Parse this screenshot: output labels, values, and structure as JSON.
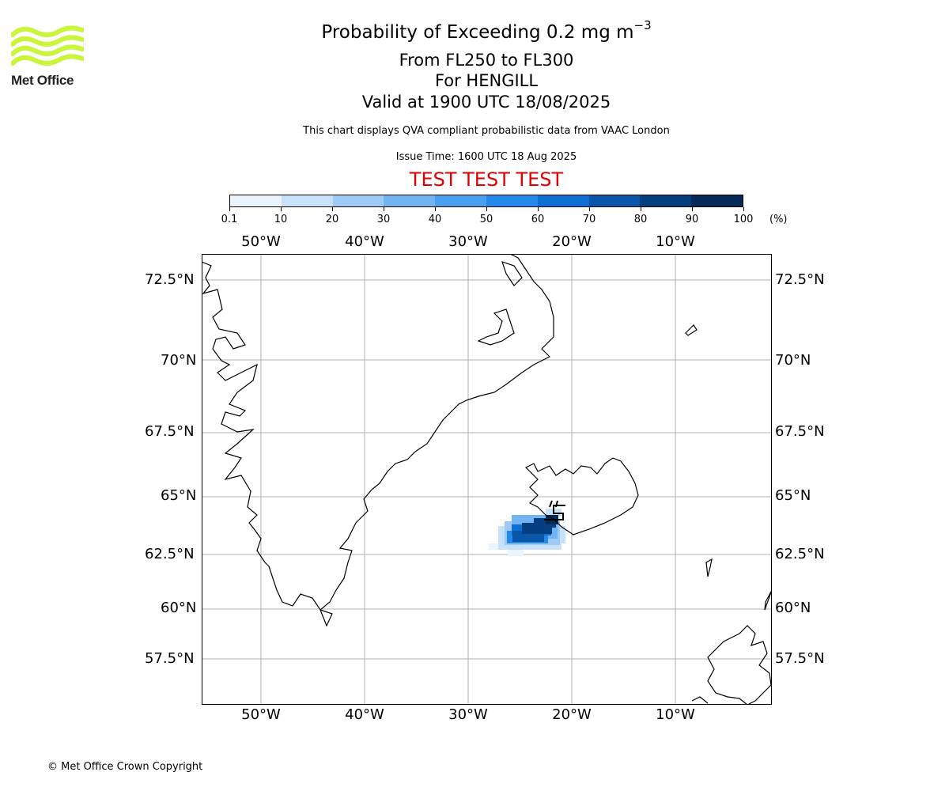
{
  "brand": {
    "name": "Met Office",
    "logo_color": "#c9f53a"
  },
  "header": {
    "title_main": "Probability of Exceeding 0.2 mg m",
    "title_sup": "−3",
    "levels": "From FL250 to FL300",
    "volcano": "For HENGILL",
    "valid": "Valid at 1900 UTC 18/08/2025",
    "description": "This chart displays QVA compliant probabilistic data from VAAC London",
    "issue_time": "Issue Time: 1600 UTC 18 Aug 2025",
    "test_banner": "TEST TEST TEST",
    "test_color": "#e00000"
  },
  "colorbar": {
    "ticks": [
      "0.1",
      "10",
      "20",
      "30",
      "40",
      "50",
      "60",
      "70",
      "80",
      "90",
      "100"
    ],
    "unit": "(%)",
    "colors": [
      "#eaf4fd",
      "#c6e1f9",
      "#9ecbf5",
      "#72b3f1",
      "#48a0ee",
      "#2389ea",
      "#0d6fd3",
      "#0a56ab",
      "#063f80",
      "#042a57"
    ]
  },
  "map": {
    "lon_labels": [
      "50°W",
      "40°W",
      "30°W",
      "20°W",
      "10°W"
    ],
    "lat_labels": [
      "72.5°N",
      "70°N",
      "67.5°N",
      "65°N",
      "62.5°N",
      "60°N",
      "57.5°N"
    ],
    "gridline_color": "#b0b0b0",
    "plume": {
      "location": "Hengill, SW Iceland",
      "max_probability_pct": 100
    }
  },
  "footer": {
    "copyright": "© Met Office Crown Copyright"
  }
}
